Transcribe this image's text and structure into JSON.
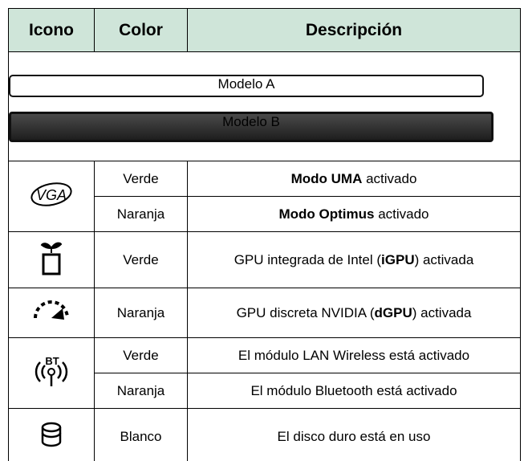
{
  "header": {
    "columns": [
      "Icono",
      "Color",
      "Descripción"
    ]
  },
  "models": [
    "Modelo A",
    "Modelo B"
  ],
  "rows": [
    {
      "icon_label": "VGA",
      "colors": [
        "Verde",
        "Naranja"
      ],
      "descriptions": [
        {
          "bold": "Modo UMA",
          "after": " activado"
        },
        {
          "bold": "Modo Optimus",
          "after": " activado"
        }
      ]
    },
    {
      "colors": [
        "Verde"
      ],
      "descriptions": [
        {
          "before": "GPU integrada de Intel (",
          "bold": "iGPU",
          "after": ") activada"
        }
      ]
    },
    {
      "colors": [
        "Naranja"
      ],
      "descriptions": [
        {
          "before": "GPU discreta NVIDIA (",
          "bold": "dGPU",
          "after": ") activada"
        }
      ]
    },
    {
      "icon_label": "BT",
      "colors": [
        "Verde",
        "Naranja"
      ],
      "descriptions": [
        {
          "before": "El módulo LAN Wireless está activado"
        },
        {
          "before": "El módulo Bluetooth está activado"
        }
      ]
    },
    {
      "colors": [
        "Blanco"
      ],
      "descriptions": [
        {
          "before": "El disco duro está en uso"
        }
      ]
    }
  ]
}
